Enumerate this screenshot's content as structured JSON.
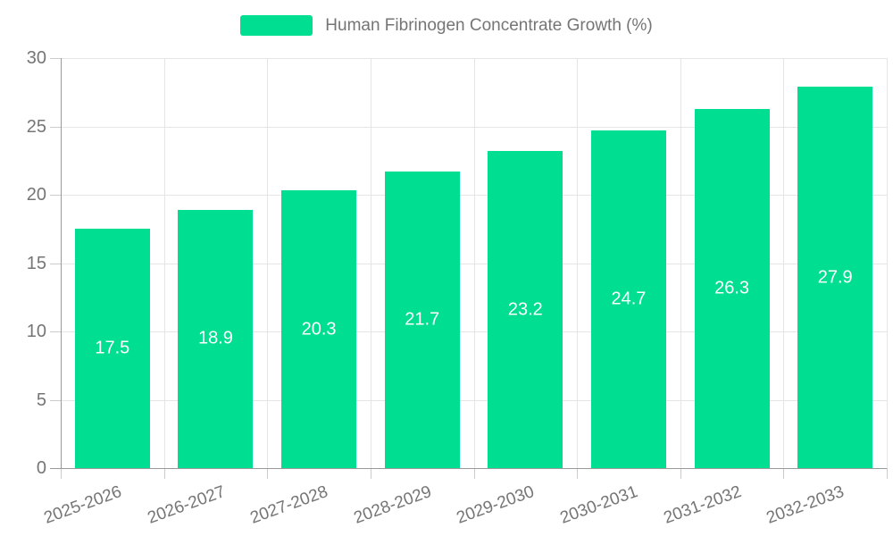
{
  "legend": {
    "label": "Human Fibrinogen Concentrate Growth (%)"
  },
  "chart_data": {
    "type": "bar",
    "title": "",
    "series_name": "Human Fibrinogen Concentrate Growth (%)",
    "categories": [
      "2025-2026",
      "2026-2027",
      "2027-2028",
      "2028-2029",
      "2029-2030",
      "2030-2031",
      "2031-2032",
      "2032-2033"
    ],
    "values": [
      17.5,
      18.9,
      20.3,
      21.7,
      23.2,
      24.7,
      26.3,
      27.9
    ],
    "value_labels": [
      "17.5",
      "18.9",
      "20.3",
      "21.7",
      "23.2",
      "24.7",
      "26.3",
      "27.9"
    ],
    "xlabel": "",
    "ylabel": "",
    "ylim": [
      0,
      30
    ],
    "yticks": [
      0,
      5,
      10,
      15,
      20,
      25,
      30
    ],
    "grid": true,
    "legend_position": "top",
    "x_label_rotation_deg": -20,
    "colors": {
      "bar": "#00de92",
      "grid": "#e5e5e5",
      "axis": "#999999",
      "tick": "#cccccc",
      "axis_text": "#757575",
      "value_text": "#ffffff",
      "background": "#ffffff"
    }
  }
}
